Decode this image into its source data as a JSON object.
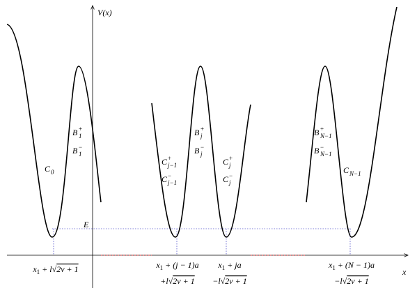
{
  "axes": {
    "y_label": "V(x)",
    "x_label": "x"
  },
  "energy_label": "E",
  "well_labels": [
    {
      "base": "C",
      "sub": "0"
    },
    {
      "base": "B",
      "sup": "+",
      "sub": "1"
    },
    {
      "base": "B",
      "sup": "−",
      "sub": "1"
    },
    {
      "base": "C",
      "sup": "+",
      "sub": "j−1"
    },
    {
      "base": "C",
      "sup": "−",
      "sub": "j−1"
    },
    {
      "base": "B",
      "sup": "+",
      "sub": "j"
    },
    {
      "base": "B",
      "sup": "−",
      "sub": "j"
    },
    {
      "base": "C",
      "sup": "+",
      "sub": "j"
    },
    {
      "base": "C",
      "sup": "−",
      "sub": "j"
    },
    {
      "base": "B",
      "sup": "+",
      "sub": "N−1"
    },
    {
      "base": "B",
      "sup": "−",
      "sub": "N−1"
    },
    {
      "base": "C",
      "sub": "N−1"
    }
  ],
  "position_labels": [
    [
      {
        "text": "x"
      },
      {
        "sub": "1"
      },
      {
        "text": " + l√"
      },
      {
        "radicand": "2ν + 1"
      }
    ],
    [
      {
        "text": "x"
      },
      {
        "sub": "1"
      },
      {
        "text": " + (j − 1)a"
      }
    ],
    [
      {
        "text": "+l√"
      },
      {
        "radicand": "2ν + 1"
      }
    ],
    [
      {
        "text": "x"
      },
      {
        "sub": "1"
      },
      {
        "text": " + ja"
      }
    ],
    [
      {
        "text": "−l√"
      },
      {
        "radicand": "2ν + 1"
      }
    ],
    [
      {
        "text": "x"
      },
      {
        "sub": "1"
      },
      {
        "text": " + (N − 1)a"
      }
    ],
    [
      {
        "text": "−l√"
      },
      {
        "radicand": "2ν + 1"
      }
    ]
  ]
}
